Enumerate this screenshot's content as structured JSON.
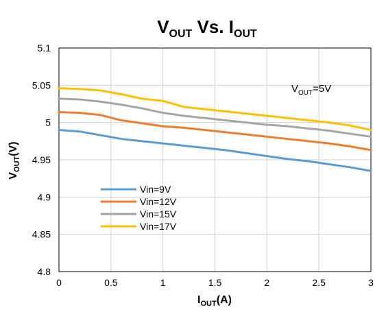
{
  "chart_data": {
    "type": "line",
    "title": {
      "main": "V",
      "main_sub": "OUT",
      "mid": " Vs. I",
      "mid_sub": "OUT"
    },
    "xlabel": {
      "main": "I",
      "sub": "OUT",
      "rest": "(A)"
    },
    "ylabel": {
      "main": "V",
      "sub": "OUT",
      "rest": "(V)"
    },
    "xlim": [
      0,
      3
    ],
    "ylim": [
      4.8,
      5.1
    ],
    "x_ticks": [
      0,
      0.5,
      1,
      1.5,
      2,
      2.5,
      3
    ],
    "x_tick_labels": [
      "0",
      "0.5",
      "1",
      "1.5",
      "2",
      "2.5",
      "3"
    ],
    "y_ticks": [
      4.8,
      4.85,
      4.9,
      4.95,
      5.0,
      5.05,
      5.1
    ],
    "y_tick_labels": [
      "4.8",
      "4.85",
      "4.9",
      "4.95",
      "5",
      "5.05",
      "5.1"
    ],
    "grid": true,
    "legend_position": "bottom-left",
    "annotation": {
      "main": "V",
      "sub": "OUT",
      "rest": "=5V"
    },
    "x": [
      0,
      0.2,
      0.4,
      0.6,
      0.8,
      1.0,
      1.2,
      1.4,
      1.6,
      1.8,
      2.0,
      2.2,
      2.4,
      2.6,
      2.8,
      3.0
    ],
    "series": [
      {
        "name": "Vin=9V",
        "color": "#5b9bd5",
        "values": [
          4.99,
          4.988,
          4.983,
          4.978,
          4.975,
          4.972,
          4.969,
          4.966,
          4.963,
          4.959,
          4.955,
          4.951,
          4.948,
          4.944,
          4.94,
          4.935
        ]
      },
      {
        "name": "Vin=12V",
        "color": "#ed7d31",
        "values": [
          5.014,
          5.013,
          5.01,
          5.003,
          4.999,
          4.995,
          4.993,
          4.99,
          4.987,
          4.984,
          4.981,
          4.978,
          4.975,
          4.972,
          4.968,
          4.963
        ]
      },
      {
        "name": "Vin=15V",
        "color": "#a5a5a5",
        "values": [
          5.032,
          5.031,
          5.028,
          5.024,
          5.019,
          5.013,
          5.009,
          5.006,
          5.003,
          5.0,
          4.997,
          4.995,
          4.992,
          4.989,
          4.985,
          4.981
        ]
      },
      {
        "name": "Vin=17V",
        "color": "#ffc000",
        "values": [
          5.046,
          5.045,
          5.043,
          5.038,
          5.032,
          5.029,
          5.021,
          5.018,
          5.015,
          5.012,
          5.009,
          5.006,
          5.003,
          5.0,
          4.996,
          4.99
        ]
      }
    ]
  }
}
